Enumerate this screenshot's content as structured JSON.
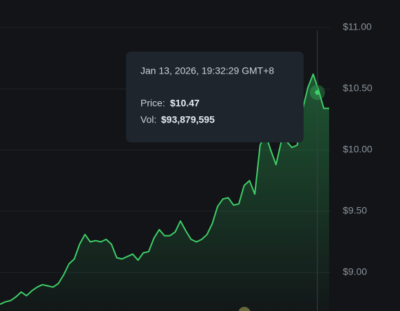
{
  "chart_data": {
    "type": "line",
    "values": [
      8.74,
      8.76,
      8.77,
      8.8,
      8.84,
      8.81,
      8.85,
      8.88,
      8.9,
      8.89,
      8.88,
      8.91,
      8.98,
      9.07,
      9.11,
      9.23,
      9.31,
      9.25,
      9.26,
      9.25,
      9.27,
      9.23,
      9.12,
      9.11,
      9.13,
      9.15,
      9.1,
      9.16,
      9.17,
      9.28,
      9.35,
      9.3,
      9.3,
      9.33,
      9.42,
      9.34,
      9.27,
      9.25,
      9.27,
      9.31,
      9.4,
      9.54,
      9.6,
      9.61,
      9.55,
      9.56,
      9.71,
      9.75,
      9.64,
      10.04,
      10.13,
      10.0,
      9.88,
      10.07,
      10.07,
      10.02,
      10.04,
      10.33,
      10.51,
      10.62,
      10.49,
      10.34,
      10.34
    ],
    "color": "#3ecf68",
    "ylim": [
      8.685,
      11.225
    ],
    "yticks": [
      {
        "value": 9,
        "label": "$9.00"
      },
      {
        "value": 9.5,
        "label": "$9.50"
      },
      {
        "value": 10,
        "label": "$10.00"
      },
      {
        "value": 10.5,
        "label": "$10.50"
      },
      {
        "value": 11,
        "label": "$11.00"
      }
    ],
    "grid": true,
    "highlight_value": 10.47,
    "tooltip": {
      "date": "Jan 13, 2026, 19:32:29 GMT+8",
      "price_label": "Price:",
      "price": "$10.47",
      "volume_label": "Vol:",
      "volume": "$93,879,595"
    }
  }
}
